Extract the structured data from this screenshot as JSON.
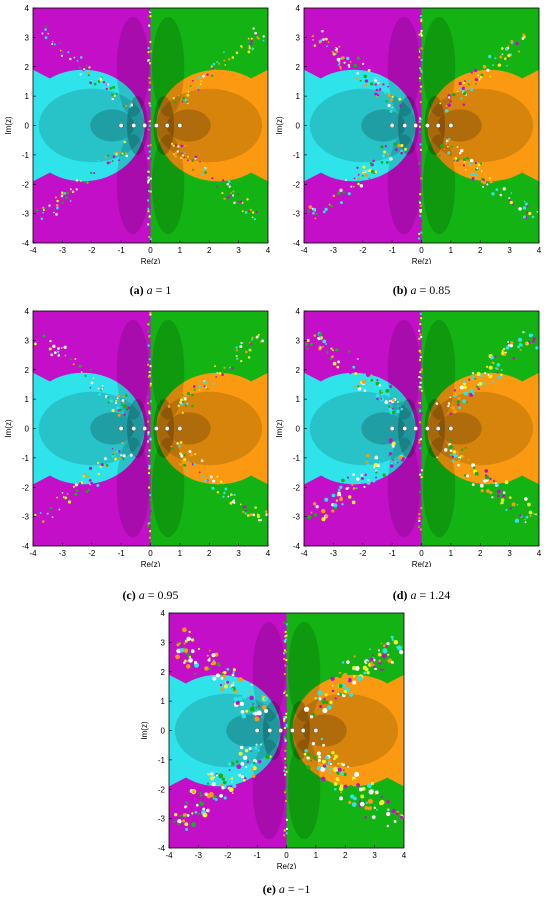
{
  "axes": {
    "xlabel": "Re(z)",
    "ylabel": "Im(z)",
    "ticks": [
      "-4",
      "-3",
      "-2",
      "-1",
      "0",
      "1",
      "2",
      "3",
      "4"
    ]
  },
  "colors": {
    "cyan": "#2ee3ea",
    "magenta": "#c40fc9",
    "green": "#12b312",
    "orange": "#fb9a10",
    "yellow": "#f3f526",
    "root": "#ffffff"
  },
  "roots": [
    -1,
    -0.57,
    -0.2,
    0.2,
    0.57,
    1
  ],
  "panels": [
    {
      "id": "a",
      "tag": "(a)",
      "var": "a",
      "rel": "=",
      "value": "1",
      "fractal": 0.35
    },
    {
      "id": "b",
      "tag": "(b)",
      "var": "a",
      "rel": "=",
      "value": "0.85",
      "fractal": 0.55
    },
    {
      "id": "c",
      "tag": "(c)",
      "var": "a",
      "rel": "=",
      "value": "0.95",
      "fractal": 0.45
    },
    {
      "id": "d",
      "tag": "(d)",
      "var": "a",
      "rel": "=",
      "value": "1.24",
      "fractal": 0.75
    },
    {
      "id": "e",
      "tag": "(e)",
      "var": "a",
      "rel": "=",
      "value": "−1",
      "fractal": 1.0
    }
  ]
}
